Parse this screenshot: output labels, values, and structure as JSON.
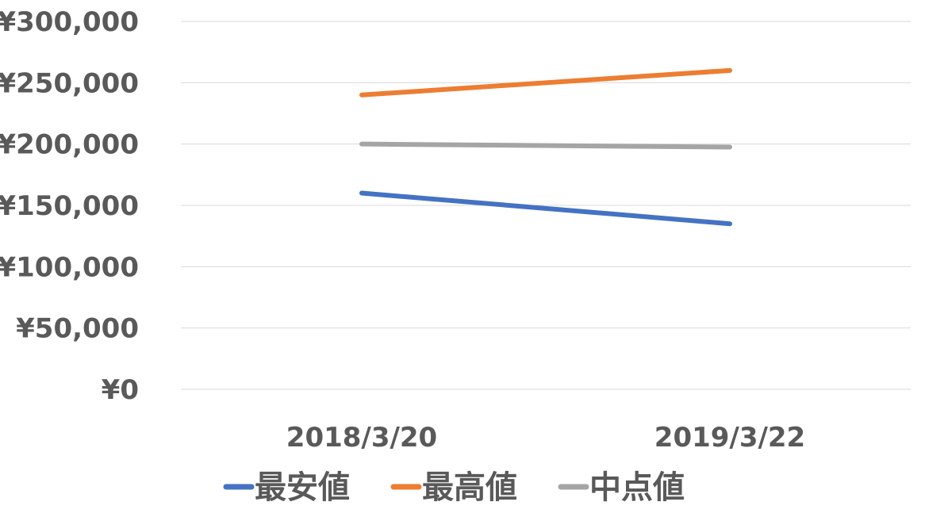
{
  "chart_data": {
    "type": "line",
    "categories": [
      "2018/3/20",
      "2019/3/22"
    ],
    "y_tick_labels": [
      "¥0",
      "¥50,000",
      "¥100,000",
      "¥150,000",
      "¥200,000",
      "¥250,000",
      "¥300,000"
    ],
    "ylim": [
      0,
      300000
    ],
    "y_step": 50000,
    "grid": true,
    "legend_position": "bottom",
    "series": [
      {
        "name": "最安値",
        "values": [
          160000,
          135000
        ],
        "color": "#4472c4"
      },
      {
        "name": "最高値",
        "values": [
          240000,
          260000
        ],
        "color": "#ed7d31"
      },
      {
        "name": "中点値",
        "values": [
          200000,
          197500
        ],
        "color": "#a5a5a5"
      }
    ]
  }
}
